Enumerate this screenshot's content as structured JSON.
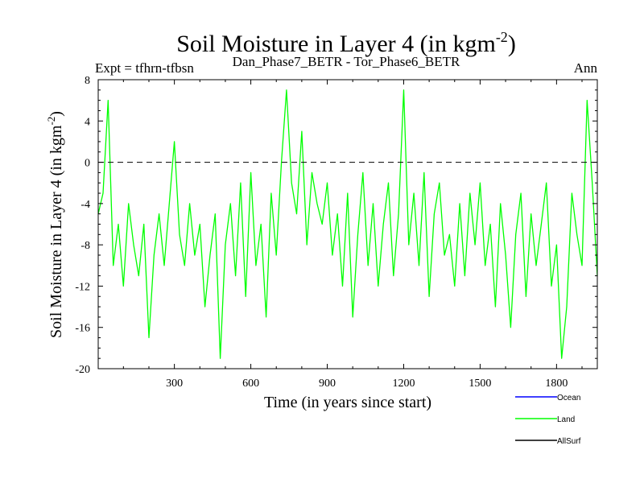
{
  "chart_data": {
    "type": "line",
    "title": "Soil Moisture in Layer 4 (in kgm",
    "title_sup": "-2",
    "title_close": ")",
    "subtitle_left": "Expt = tfhrn-tfbsn",
    "subtitle_center": "Dan_Phase7_BETR - Tor_Phase6_BETR",
    "subtitle_right": "Ann",
    "xlabel": "Time (in years since start)",
    "ylabel": "Soil Moisture in Layer 4 (in kgm",
    "ylabel_sup": "-2",
    "ylabel_close": ")",
    "xlim": [
      1,
      1960
    ],
    "ylim": [
      -20,
      8
    ],
    "xticks": [
      300,
      600,
      900,
      1200,
      1500,
      1800
    ],
    "yticks": [
      8,
      4,
      0,
      -4,
      -8,
      -12,
      -16,
      -20
    ],
    "reference_line": 0,
    "legend_position": "bottom-right",
    "legend": [
      {
        "name": "Ocean",
        "color": "#0000ff"
      },
      {
        "name": "Land",
        "color": "#00ff00"
      },
      {
        "name": "AllSurf",
        "color": "#000000"
      }
    ],
    "series": [
      {
        "name": "Land",
        "color": "#00ff00",
        "x": [
          1,
          20,
          40,
          60,
          80,
          100,
          120,
          140,
          160,
          180,
          200,
          220,
          240,
          260,
          280,
          300,
          320,
          340,
          360,
          380,
          400,
          420,
          440,
          460,
          480,
          500,
          520,
          540,
          560,
          580,
          600,
          620,
          640,
          660,
          680,
          700,
          720,
          740,
          760,
          780,
          800,
          820,
          840,
          860,
          880,
          900,
          920,
          940,
          960,
          980,
          1000,
          1020,
          1040,
          1060,
          1080,
          1100,
          1120,
          1140,
          1160,
          1180,
          1200,
          1220,
          1240,
          1260,
          1280,
          1300,
          1320,
          1340,
          1360,
          1380,
          1400,
          1420,
          1440,
          1460,
          1480,
          1500,
          1520,
          1540,
          1560,
          1580,
          1600,
          1620,
          1640,
          1660,
          1680,
          1700,
          1720,
          1740,
          1760,
          1780,
          1800,
          1820,
          1840,
          1860,
          1880,
          1900,
          1920,
          1940,
          1960
        ],
        "values": [
          -5,
          -3,
          6,
          -10,
          -6,
          -12,
          -4,
          -8,
          -11,
          -6,
          -17,
          -9,
          -5,
          -10,
          -4,
          2,
          -7,
          -10,
          -4,
          -9,
          -6,
          -14,
          -9,
          -5,
          -19,
          -8,
          -4,
          -11,
          -2,
          -13,
          -1,
          -10,
          -6,
          -15,
          -3,
          -9,
          0,
          7,
          -2,
          -5,
          3,
          -8,
          -1,
          -4,
          -6,
          -2,
          -9,
          -5,
          -12,
          -3,
          -15,
          -7,
          -1,
          -10,
          -4,
          -12,
          -6,
          -2,
          -11,
          -5,
          7,
          -8,
          -3,
          -10,
          -1,
          -13,
          -5,
          -2,
          -9,
          -7,
          -12,
          -4,
          -11,
          -3,
          -8,
          -2,
          -10,
          -6,
          -14,
          -4,
          -9,
          -16,
          -7,
          -3,
          -13,
          -5,
          -10,
          -6,
          -2,
          -12,
          -8,
          -19,
          -14,
          -3,
          -7,
          -10,
          6,
          -2,
          -11
        ]
      }
    ]
  }
}
